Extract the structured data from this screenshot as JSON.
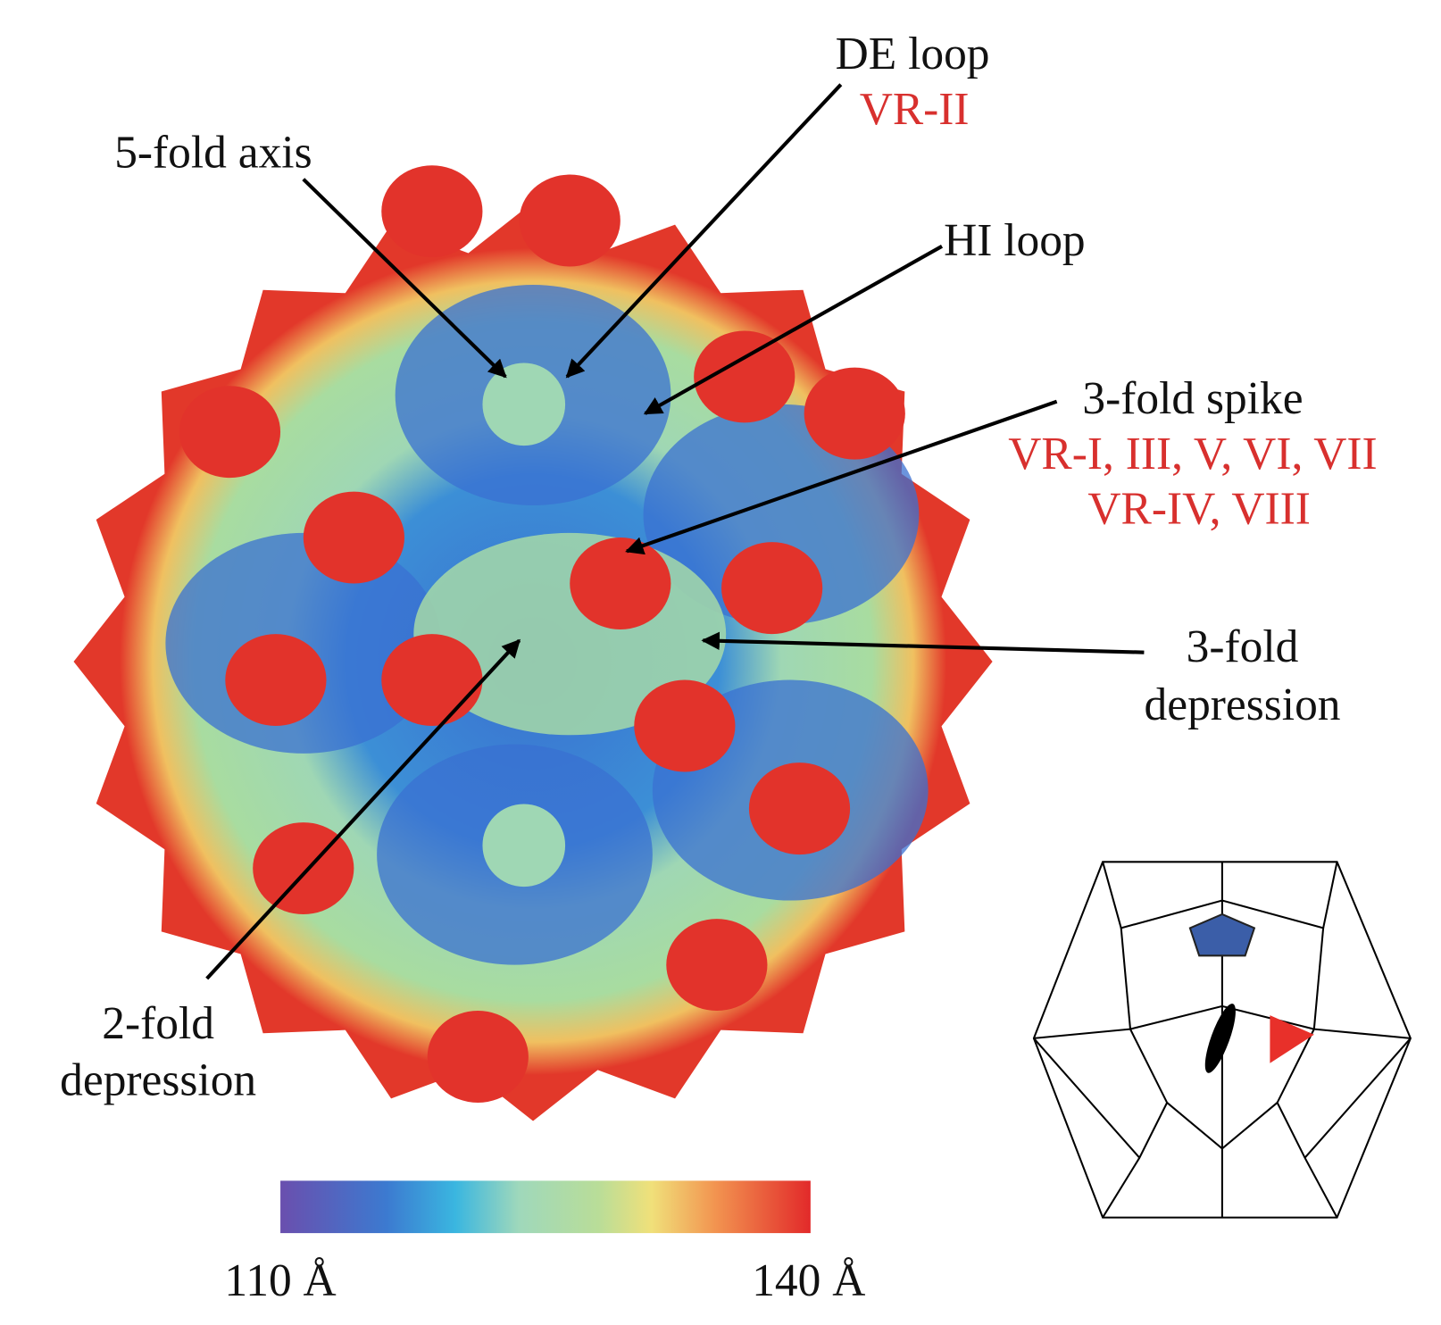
{
  "labels": {
    "de_loop": "DE loop",
    "vr_ii": "VR-II",
    "five_fold_axis": "5-fold axis",
    "hi_loop": "HI loop",
    "three_fold_spike": "3-fold spike",
    "spike_vr_1": "VR-I, III, V, VI, VII",
    "spike_vr_2": "VR-IV, VIII",
    "three_fold_depression": [
      "3-fold",
      "depression"
    ],
    "two_fold_depression": [
      "2-fold",
      "depression"
    ]
  },
  "colorbar": {
    "min_label": "110 Å",
    "max_label": "140 Å"
  }
}
